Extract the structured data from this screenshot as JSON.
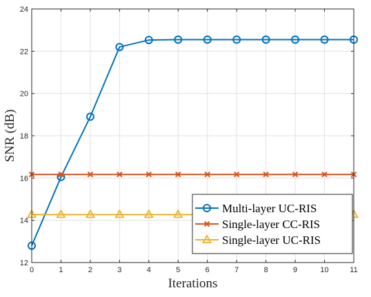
{
  "chart_data": {
    "type": "line",
    "xlabel": "Iterations",
    "ylabel": "SNR (dB)",
    "xlim": [
      0,
      11
    ],
    "ylim": [
      12,
      24
    ],
    "x_ticks": [
      0,
      1,
      2,
      3,
      4,
      5,
      6,
      7,
      8,
      9,
      10,
      11
    ],
    "y_ticks": [
      12,
      14,
      16,
      18,
      20,
      22,
      24
    ],
    "grid": true,
    "legend_position": "bottom-right",
    "x": [
      0,
      1,
      2,
      3,
      4,
      5,
      6,
      7,
      8,
      9,
      10,
      11
    ],
    "series": [
      {
        "name": "Multi-layer UC-RIS",
        "marker": "circle",
        "color": "#0072BD",
        "values": [
          12.8,
          16.05,
          18.9,
          22.2,
          22.53,
          22.55,
          22.55,
          22.55,
          22.55,
          22.55,
          22.55,
          22.55
        ]
      },
      {
        "name": "Single-layer CC-RIS",
        "marker": "x",
        "color": "#D95319",
        "values": [
          16.17,
          16.17,
          16.17,
          16.17,
          16.17,
          16.17,
          16.17,
          16.17,
          16.17,
          16.17,
          16.17,
          16.17
        ]
      },
      {
        "name": "Single-layer UC-RIS",
        "marker": "triangle",
        "color": "#EDB120",
        "values": [
          14.27,
          14.27,
          14.27,
          14.27,
          14.27,
          14.27,
          14.27,
          14.27,
          14.27,
          14.27,
          14.27,
          14.27
        ]
      }
    ]
  }
}
